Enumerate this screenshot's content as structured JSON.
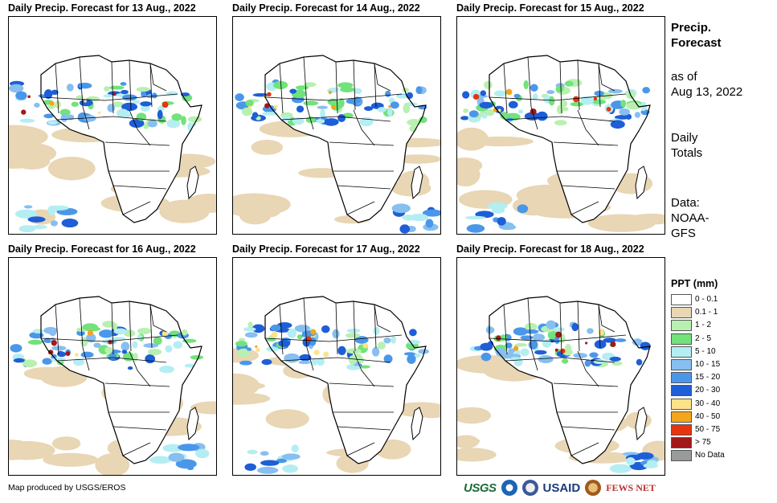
{
  "panels": [
    {
      "title": "Daily Precip. Forecast for 13 Aug., 2022"
    },
    {
      "title": "Daily Precip. Forecast for 14 Aug., 2022"
    },
    {
      "title": "Daily Precip. Forecast for 15 Aug., 2022"
    },
    {
      "title": "Daily Precip. Forecast for 16 Aug., 2022"
    },
    {
      "title": "Daily Precip. Forecast for 17 Aug., 2022"
    },
    {
      "title": "Daily Precip. Forecast for 18 Aug., 2022"
    }
  ],
  "side": {
    "title_line1": "Precip.",
    "title_line2": "Forecast",
    "asof_line1": "as of",
    "asof_line2": "Aug 13, 2022",
    "totals_line1": "Daily",
    "totals_line2": "Totals",
    "source_line1": "Data:",
    "source_line2": "NOAA-",
    "source_line3": "GFS"
  },
  "legend": {
    "title": "PPT (mm)",
    "items": [
      {
        "label": "0 - 0.1",
        "color": "#ffffff"
      },
      {
        "label": "0.1 - 1",
        "color": "#e8d6b4"
      },
      {
        "label": "1 - 2",
        "color": "#b8f0b0"
      },
      {
        "label": "2 - 5",
        "color": "#72e27a"
      },
      {
        "label": "5 - 10",
        "color": "#b4eef2"
      },
      {
        "label": "10 - 15",
        "color": "#86bff0"
      },
      {
        "label": "15 - 20",
        "color": "#4a97ea"
      },
      {
        "label": "20 - 30",
        "color": "#1e5ed6"
      },
      {
        "label": "30 - 40",
        "color": "#fde28a"
      },
      {
        "label": "40 - 50",
        "color": "#f4a51c"
      },
      {
        "label": "50 - 75",
        "color": "#e8340e"
      },
      {
        "label": "> 75",
        "color": "#a31818"
      },
      {
        "label": "No Data",
        "color": "#9a9a9a"
      }
    ]
  },
  "credit": "Map produced by USGS/EROS",
  "logos": {
    "usgs": "USGS",
    "usaid": "USAID",
    "fews": "FEWS NET"
  }
}
